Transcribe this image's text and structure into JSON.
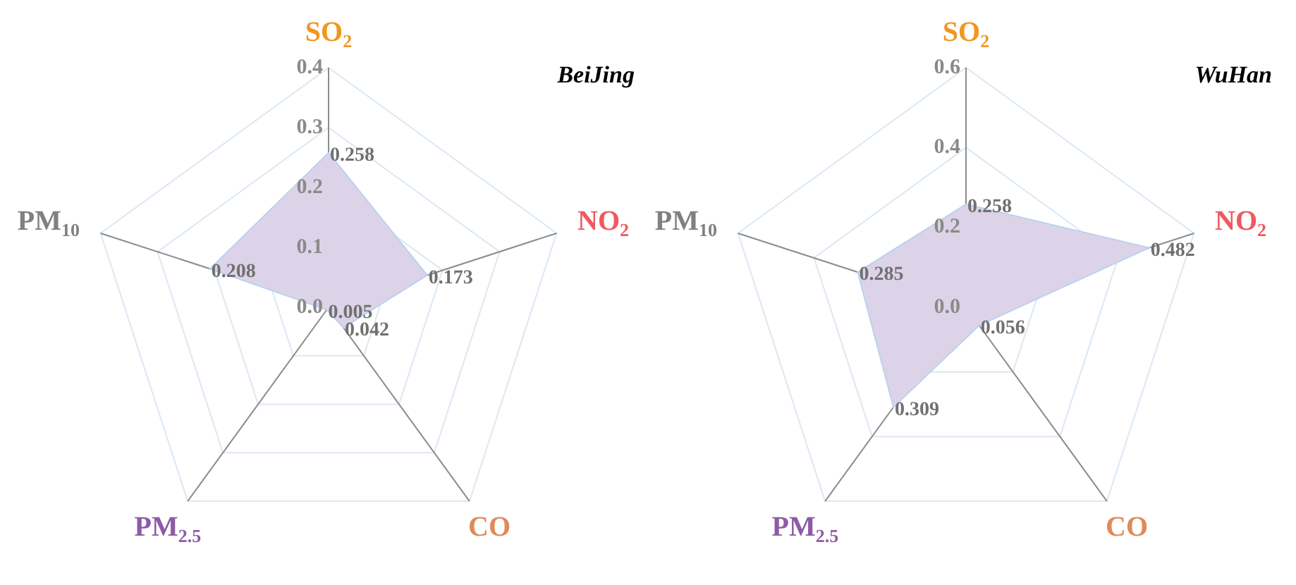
{
  "chart_data": [
    {
      "type": "radar",
      "title": "BeiJing",
      "categories": [
        "SO$_{2}$",
        "NO$_{2}$",
        "CO",
        "PM$_{2.5}$",
        "PM$_{10}$"
      ],
      "series": [
        {
          "color": "#ddd3e8",
          "values": [
            0.258,
            0.173,
            0.042,
            0.005,
            0.208
          ]
        }
      ],
      "ylim": [
        0,
        0.4
      ],
      "yticks": [
        {
          "value": 0,
          "label": "0.0"
        },
        0.1,
        0.2,
        0.3,
        0.4
      ],
      "data_labels": true,
      "grid": true,
      "legend": false,
      "marker": "none"
    },
    {
      "type": "radar",
      "title": "WuHan",
      "categories": [
        "SO$_{2}$",
        "NO$_{2}$",
        "CO",
        "PM$_{2.5}$",
        "PM$_{10}$"
      ],
      "series": [
        {
          "color": "#ddd3e8",
          "values": [
            0.258,
            0.482,
            0.056,
            0.309,
            0.285
          ]
        }
      ],
      "ylim": [
        0,
        0.6
      ],
      "yticks": [
        {
          "value": 0,
          "label": "0.0"
        },
        0.2,
        0.4,
        0.6
      ],
      "data_labels": true,
      "grid": true,
      "legend": false,
      "marker": "none"
    }
  ]
}
